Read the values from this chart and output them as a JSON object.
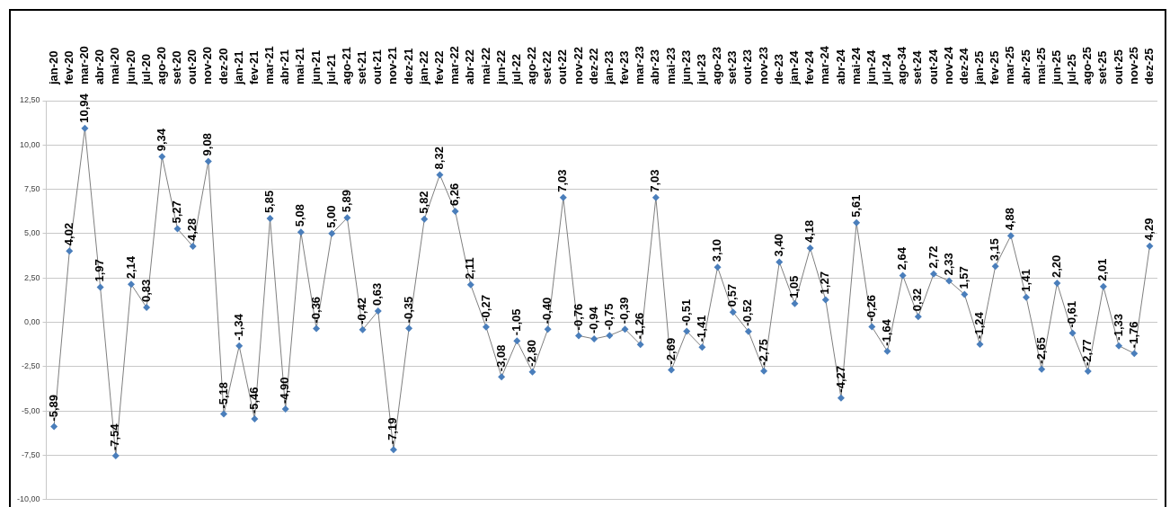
{
  "chart_data": {
    "type": "line",
    "categories": [
      "jan-20",
      "fev-20",
      "mar-20",
      "abr-20",
      "mai-20",
      "jun-20",
      "jul-20",
      "ago-20",
      "set-20",
      "out-20",
      "nov-20",
      "dez-20",
      "jan-21",
      "fev-21",
      "mar-21",
      "abr-21",
      "mai-21",
      "jun-21",
      "jul-21",
      "ago-21",
      "set-21",
      "out-21",
      "nov-21",
      "dez-21",
      "jan-22",
      "fev-22",
      "mar-22",
      "abr-22",
      "mai-22",
      "jun-22",
      "jul-22",
      "ago-22",
      "set-22",
      "out-22",
      "nov-22",
      "dez-22",
      "jan-23",
      "fev-23",
      "mar-23",
      "abr-23",
      "mai-23",
      "jun-23",
      "jul-23",
      "ago-23",
      "set-23",
      "out-23",
      "nov-23",
      "de-23",
      "jan-24",
      "fev-24",
      "mar-24",
      "abr-24",
      "mai-24",
      "jun-24",
      "jul-24",
      "ago-34",
      "set-24",
      "out-24",
      "nov-24",
      "dez-24",
      "jan-25",
      "fev-25",
      "mar-25",
      "abr-25",
      "mai-25",
      "jun-25",
      "jul-25",
      "ago-25",
      "set-25",
      "out-25",
      "nov-25",
      "dez-25"
    ],
    "series": [
      {
        "color": "#7f7f7f",
        "colors": [
          "#4a7ebb",
          "#4a7ebb",
          "#4a7ebb",
          "#4a7ebb",
          "#4a7ebb",
          "#4a7ebb",
          "#4a7ebb",
          "#4a7ebb",
          "#4a7ebb",
          "#4a7ebb",
          "#4a7ebb",
          "#4a7ebb",
          "#4a7ebb",
          "#4a7ebb",
          "#4a7ebb",
          "#4a7ebb",
          "#4a7ebb",
          "#4a7ebb",
          "#4a7ebb",
          "#4a7ebb",
          "#4a7ebb",
          "#4a7ebb",
          "#4a7ebb",
          "#4a7ebb",
          "#4a7ebb",
          "#4a7ebb",
          "#4a7ebb",
          "#4a7ebb",
          "#4a7ebb",
          "#4a7ebb",
          "#4a7ebb",
          "#4a7ebb",
          "#4a7ebb",
          "#4a7ebb",
          "#4a7ebb",
          "#4a7ebb",
          "#4a7ebb",
          "#4a7ebb",
          "#4a7ebb",
          "#4a7ebb",
          "#4a7ebb",
          "#4a7ebb",
          "#4a7ebb",
          "#4a7ebb",
          "#4a7ebb",
          "#4a7ebb",
          "#4a7ebb",
          "#4a7ebb",
          "#4a7ebb",
          "#4a7ebb",
          "#4a7ebb",
          "#4a7ebb",
          "#4a7ebb",
          "#4a7ebb",
          "#4a7ebb",
          "#4a7ebb",
          "#4a7ebb",
          "#4a7ebb",
          "#4a7ebb",
          "#4a7ebb",
          "#4a7ebb",
          "#4a7ebb",
          "#4a7ebb",
          "#4a7ebb",
          "#4a7ebb",
          "#4a7ebb",
          "#4a7ebb",
          "#4a7ebb",
          "#4a7ebb",
          "#4a7ebb",
          "#4a7ebb",
          "#4a7ebb"
        ],
        "values": [
          -5.89,
          4.02,
          10.94,
          1.97,
          -7.54,
          2.14,
          0.83,
          9.34,
          5.27,
          4.28,
          9.08,
          -5.18,
          -1.34,
          -5.46,
          5.85,
          -4.9,
          5.08,
          -0.36,
          5.0,
          5.89,
          -0.42,
          0.63,
          -7.19,
          -0.35,
          5.82,
          8.32,
          6.26,
          2.11,
          -0.27,
          -3.08,
          -1.05,
          -2.8,
          -0.4,
          7.03,
          -0.76,
          -0.94,
          -0.75,
          -0.39,
          -1.26,
          7.03,
          -2.69,
          -0.51,
          -1.41,
          3.1,
          0.57,
          -0.52,
          -2.75,
          3.4,
          1.05,
          4.18,
          1.27,
          -4.27,
          5.61,
          -0.26,
          -1.64,
          2.64,
          0.32,
          2.72,
          2.33,
          1.57,
          -1.24,
          3.15,
          4.88,
          1.41,
          -2.65,
          2.2,
          -0.61,
          -2.77,
          2.01,
          -1.33,
          -1.76,
          4.29
        ],
        "value_labels": [
          "-5,89",
          "4,02",
          "10,94",
          "1,97",
          "-7,54",
          "2,14",
          "0,83",
          "9,34",
          "5,27",
          "4,28",
          "9,08",
          "-5,18",
          "-1,34",
          "-5,46",
          "5,85",
          "-4,90",
          "5,08",
          "-0,36",
          "5,00",
          "5,89",
          "-0,42",
          "0,63",
          "-7,19",
          "-0,35",
          "5,82",
          "8,32",
          "6,26",
          "2,11",
          "-0,27",
          "-3,08",
          "-1,05",
          "-2,80",
          "-0,40",
          "7,03",
          "-0,76",
          "-0,94",
          "-0,75",
          "-0,39",
          "-1,26",
          "7,03",
          "-2,69",
          "-0,51",
          "-1,41",
          "3,10",
          "0,57",
          "-0,52",
          "-2,75",
          "3,40",
          "1,05",
          "4,18",
          "1,27",
          "-4,27",
          "5,61",
          "-0,26",
          "-1,64",
          "2,64",
          "0,32",
          "2,72",
          "2,33",
          "1,57",
          "-1,24",
          "3,15",
          "4,88",
          "1,41",
          "-2,65",
          "2,20",
          "-0,61",
          "-2,77",
          "2,01",
          "-1,33",
          "-1,76",
          "4,29"
        ]
      }
    ],
    "ylim": [
      -10,
      12.5
    ],
    "yticks": [
      {
        "value": -10,
        "label": "-10,00"
      },
      {
        "value": -7.5,
        "label": "-7,50"
      },
      {
        "value": -5,
        "label": "-5,00"
      },
      {
        "value": -2.5,
        "label": "-2,50"
      },
      {
        "value": 0,
        "label": "0,00"
      },
      {
        "value": 2.5,
        "label": "2,50"
      },
      {
        "value": 5,
        "label": "5,00"
      },
      {
        "value": 7.5,
        "label": "7,50"
      },
      {
        "value": 10,
        "label": "10,00"
      },
      {
        "value": 12.5,
        "label": "12,50"
      }
    ],
    "grid": "y",
    "marker": "diamond",
    "line_style": "solid",
    "legend": false
  }
}
